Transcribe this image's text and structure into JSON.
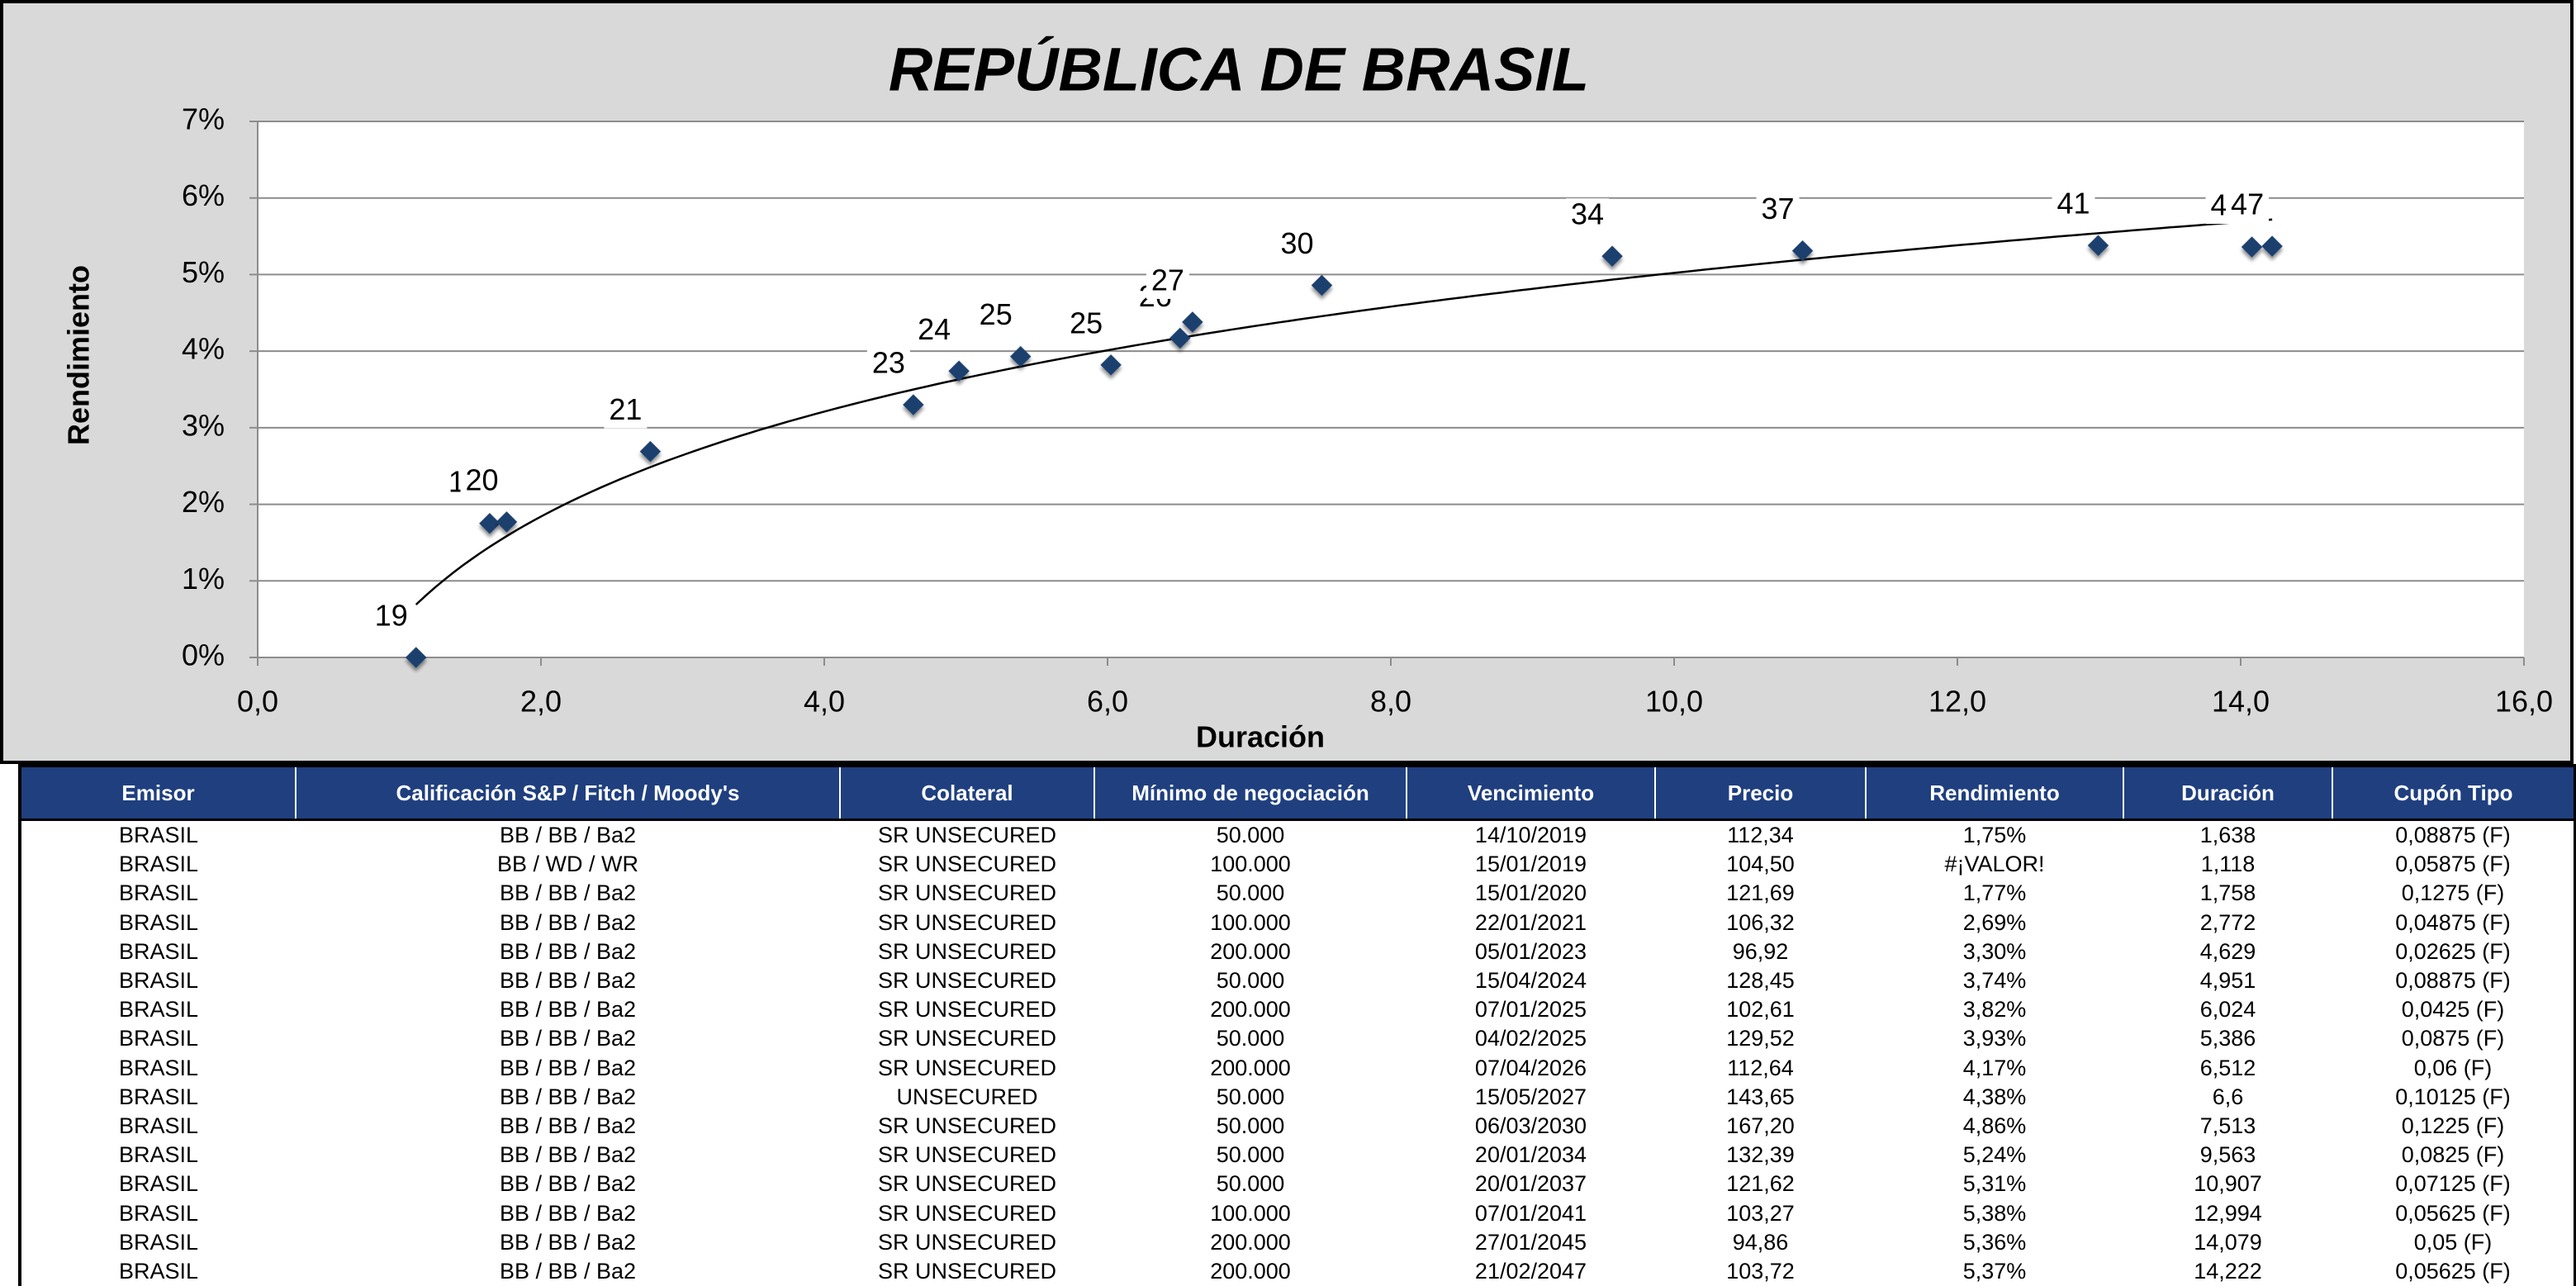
{
  "chart_data": {
    "type": "scatter",
    "title": "REPÚBLICA DE BRASIL",
    "x_label": "Duración",
    "y_label": "Rendimiento",
    "xlim": [
      0,
      16
    ],
    "xticks": [
      {
        "value": 0,
        "label": "0,0"
      },
      {
        "value": 2,
        "label": "2,0"
      },
      {
        "value": 4,
        "label": "4,0"
      },
      {
        "value": 6,
        "label": "6,0"
      },
      {
        "value": 8,
        "label": "8,0"
      },
      {
        "value": 10,
        "label": "10,0"
      },
      {
        "value": 12,
        "label": "12,0"
      },
      {
        "value": 14,
        "label": "14,0"
      },
      {
        "value": 16,
        "label": "16,0"
      }
    ],
    "ylim": [
      0,
      7
    ],
    "yticks": [
      {
        "value": 0,
        "label": "0%"
      },
      {
        "value": 1,
        "label": "1%"
      },
      {
        "value": 2,
        "label": "2%"
      },
      {
        "value": 3,
        "label": "3%"
      },
      {
        "value": 4,
        "label": "4%"
      },
      {
        "value": 5,
        "label": "5%"
      },
      {
        "value": 6,
        "label": "6%"
      },
      {
        "value": 7,
        "label": "7%"
      }
    ],
    "grid": true,
    "trendline": "logarithmic",
    "series": [
      {
        "color": "#1f3f6e",
        "x": [
          1.638,
          1.118,
          1.758,
          2.772,
          4.629,
          4.951,
          6.024,
          5.386,
          6.512,
          6.6,
          7.513,
          9.563,
          10.907,
          12.994,
          14.079,
          14.222
        ],
        "values": [
          1.75,
          0,
          1.77,
          2.69,
          3.3,
          3.74,
          3.82,
          3.93,
          4.17,
          4.38,
          4.86,
          5.24,
          5.31,
          5.38,
          5.36,
          5.37
        ],
        "labels": [
          "19",
          "19",
          "20",
          "21",
          "23",
          "24",
          "25",
          "25",
          "26",
          "27",
          "30",
          "34",
          "37",
          "41",
          "45",
          "47"
        ]
      }
    ]
  },
  "table": {
    "header": [
      "Emisor",
      "Calificación  S&P / Fitch / Moody's",
      "Colateral",
      "Mínimo de negociación",
      "Vencimiento",
      "Precio",
      "Rendimiento",
      "Duración",
      "Cupón Tipo"
    ],
    "rows": [
      [
        "BRASIL",
        "BB / BB / Ba2",
        "SR UNSECURED",
        "50.000",
        "14/10/2019",
        "112,34",
        "1,75%",
        "1,638",
        "0,08875 (F)"
      ],
      [
        "BRASIL",
        "BB / WD / WR",
        "SR UNSECURED",
        "100.000",
        "15/01/2019",
        "104,50",
        "#¡VALOR!",
        "1,118",
        "0,05875 (F)"
      ],
      [
        "BRASIL",
        "BB / BB / Ba2",
        "SR UNSECURED",
        "50.000",
        "15/01/2020",
        "121,69",
        "1,77%",
        "1,758",
        "0,1275 (F)"
      ],
      [
        "BRASIL",
        "BB / BB / Ba2",
        "SR UNSECURED",
        "100.000",
        "22/01/2021",
        "106,32",
        "2,69%",
        "2,772",
        "0,04875 (F)"
      ],
      [
        "BRASIL",
        "BB / BB / Ba2",
        "SR UNSECURED",
        "200.000",
        "05/01/2023",
        "96,92",
        "3,30%",
        "4,629",
        "0,02625 (F)"
      ],
      [
        "BRASIL",
        "BB / BB / Ba2",
        "SR UNSECURED",
        "50.000",
        "15/04/2024",
        "128,45",
        "3,74%",
        "4,951",
        "0,08875 (F)"
      ],
      [
        "BRASIL",
        "BB / BB / Ba2",
        "SR UNSECURED",
        "200.000",
        "07/01/2025",
        "102,61",
        "3,82%",
        "6,024",
        "0,0425 (F)"
      ],
      [
        "BRASIL",
        "BB / BB / Ba2",
        "SR UNSECURED",
        "50.000",
        "04/02/2025",
        "129,52",
        "3,93%",
        "5,386",
        "0,0875 (F)"
      ],
      [
        "BRASIL",
        "BB / BB / Ba2",
        "SR UNSECURED",
        "200.000",
        "07/04/2026",
        "112,64",
        "4,17%",
        "6,512",
        "0,06 (F)"
      ],
      [
        "BRASIL",
        "BB / BB / Ba2",
        "UNSECURED",
        "50.000",
        "15/05/2027",
        "143,65",
        "4,38%",
        "6,6",
        "0,10125 (F)"
      ],
      [
        "BRASIL",
        "BB / BB / Ba2",
        "SR UNSECURED",
        "50.000",
        "06/03/2030",
        "167,20",
        "4,86%",
        "7,513",
        "0,1225 (F)"
      ],
      [
        "BRASIL",
        "BB / BB / Ba2",
        "SR UNSECURED",
        "50.000",
        "20/01/2034",
        "132,39",
        "5,24%",
        "9,563",
        "0,0825 (F)"
      ],
      [
        "BRASIL",
        "BB / BB / Ba2",
        "SR UNSECURED",
        "50.000",
        "20/01/2037",
        "121,62",
        "5,31%",
        "10,907",
        "0,07125 (F)"
      ],
      [
        "BRASIL",
        "BB / BB / Ba2",
        "SR UNSECURED",
        "100.000",
        "07/01/2041",
        "103,27",
        "5,38%",
        "12,994",
        "0,05625 (F)"
      ],
      [
        "BRASIL",
        "BB / BB / Ba2",
        "SR UNSECURED",
        "200.000",
        "27/01/2045",
        "94,86",
        "5,36%",
        "14,079",
        "0,05 (F)"
      ],
      [
        "BRASIL",
        "BB / BB / Ba2",
        "SR UNSECURED",
        "200.000",
        "21/02/2047",
        "103,72",
        "5,37%",
        "14,222",
        "0,05625 (F)"
      ]
    ]
  }
}
